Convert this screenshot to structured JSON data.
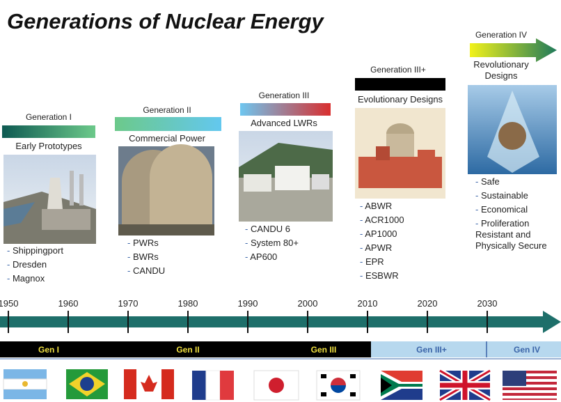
{
  "title": "Generations of Nuclear Energy",
  "generations": [
    {
      "label": "Generation I",
      "subtitle": "Early Prototypes",
      "items": [
        "Shippingport",
        "Dresden",
        "Magnox"
      ]
    },
    {
      "label": "Generation II",
      "subtitle": "Commercial Power",
      "items": [
        "PWRs",
        "BWRs",
        "CANDU"
      ]
    },
    {
      "label": "Generation III",
      "subtitle": "Advanced LWRs",
      "items": [
        "CANDU 6",
        "System 80+",
        "AP600"
      ]
    },
    {
      "label": "Generation III+",
      "subtitle": "Evolutionary Designs",
      "items": [
        "ABWR",
        "ACR1000",
        "AP1000",
        "APWR",
        "EPR",
        "ESBWR"
      ]
    },
    {
      "label": "Generation IV",
      "subtitle": "Revolutionary Designs",
      "items": [
        "Safe",
        "Sustainable",
        "Economical",
        "Proliferation Resistant and Physically Secure"
      ]
    }
  ],
  "timeline": {
    "years": [
      1950,
      1960,
      1970,
      1980,
      1990,
      2000,
      2010,
      2020,
      2030
    ],
    "eras": [
      "Gen I",
      "Gen II",
      "Gen III",
      "Gen III+",
      "Gen IV"
    ]
  }
}
